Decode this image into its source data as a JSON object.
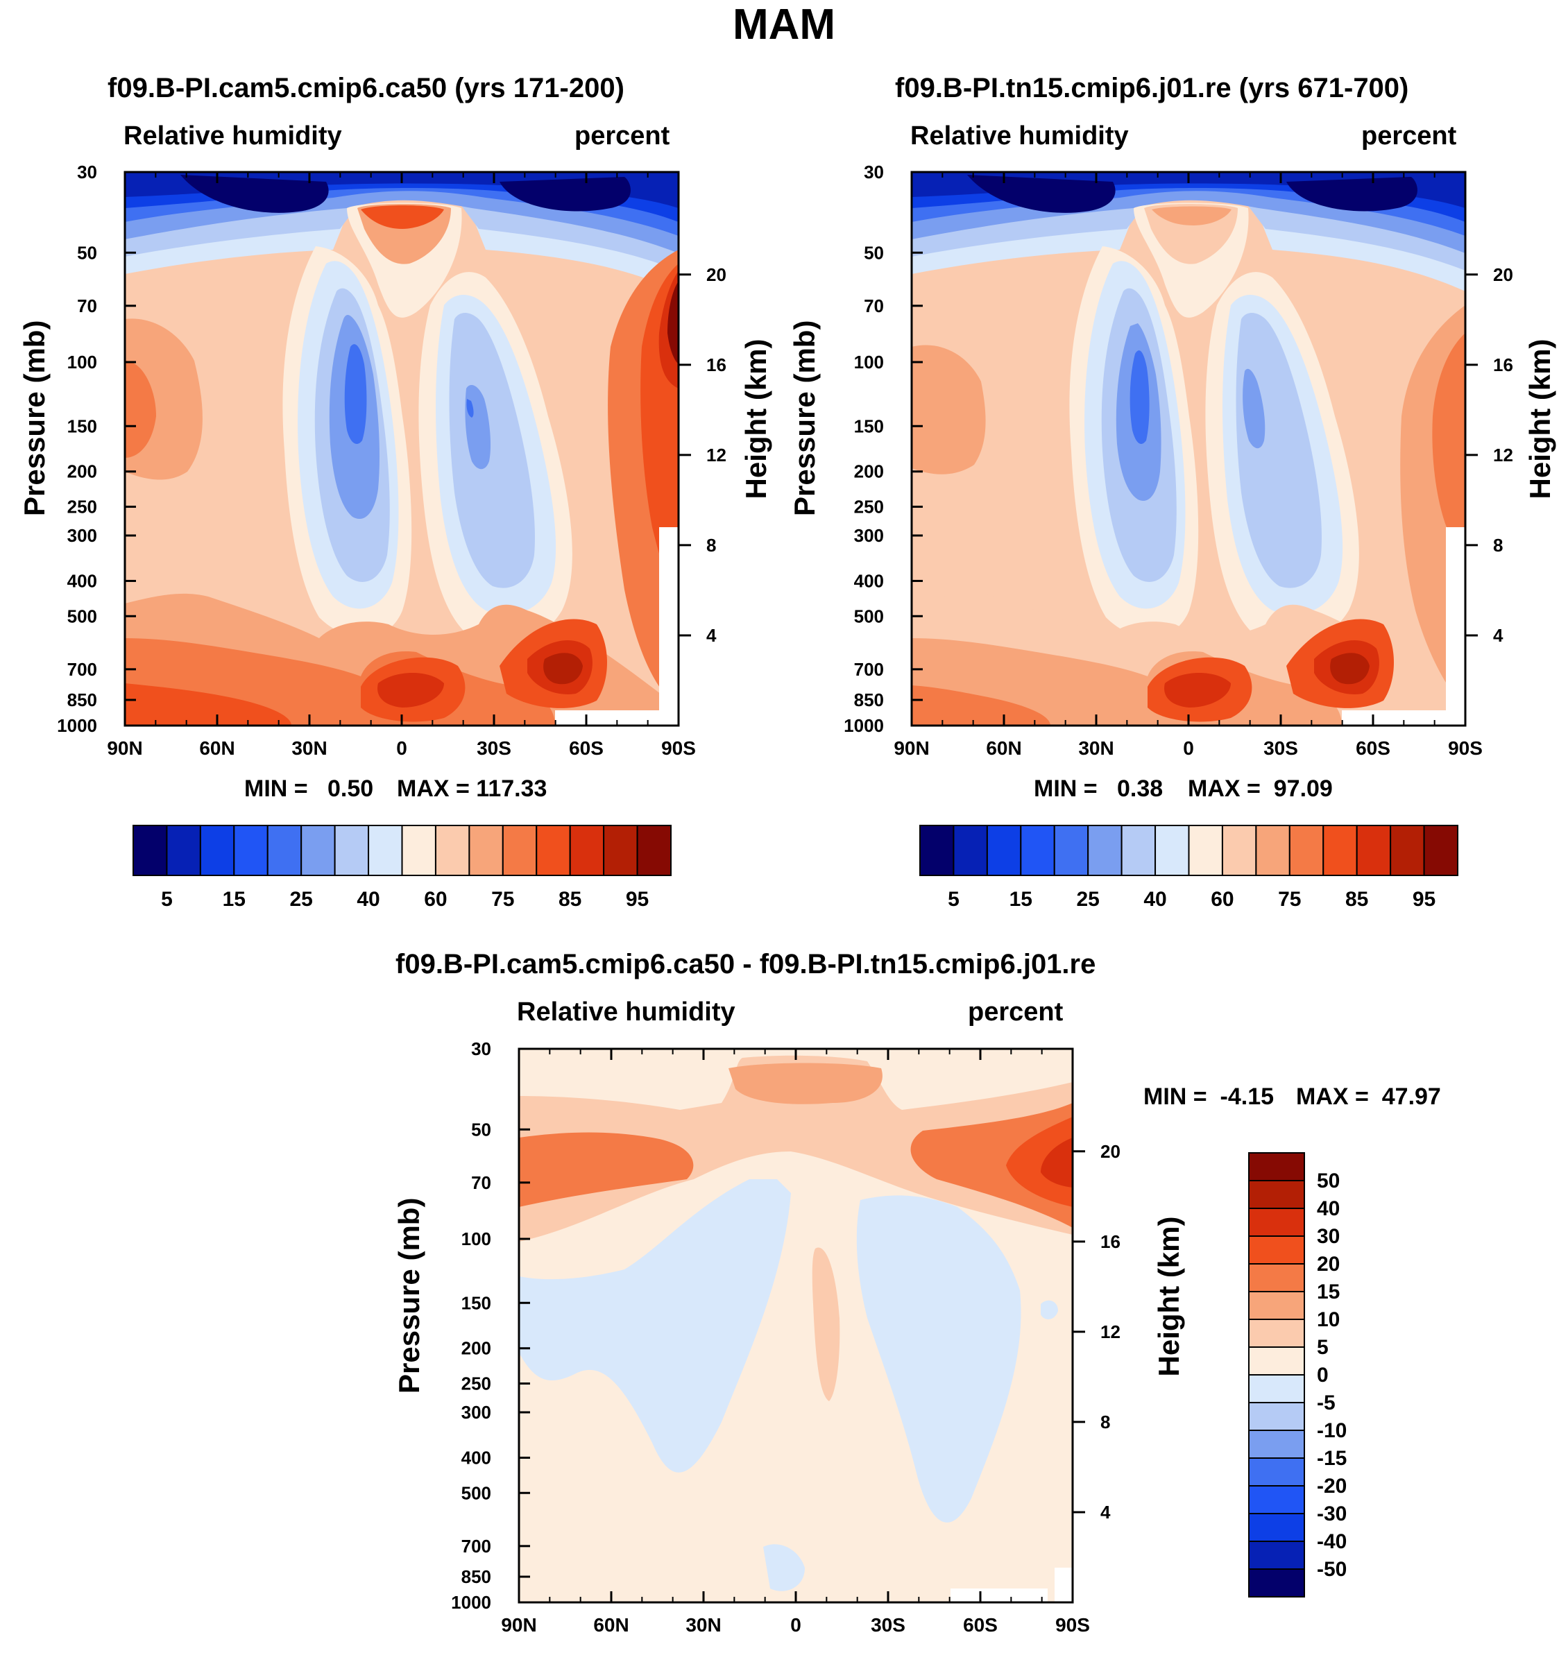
{
  "figure_title": "MAM",
  "chart_data": [
    {
      "type": "heatmap",
      "title": "f09.B-PI.cam5.cmip6.ca50 (yrs 171-200)",
      "left_label": "Relative humidity",
      "right_label": "percent",
      "xlabel": "",
      "ylabel": "Pressure (mb)",
      "ylabel_right": "Height (km)",
      "x_ticks": [
        "90N",
        "60N",
        "30N",
        "0",
        "30S",
        "60S",
        "90S"
      ],
      "y_ticks": [
        30,
        50,
        70,
        100,
        150,
        200,
        250,
        300,
        400,
        500,
        700,
        850,
        1000
      ],
      "y_right_ticks": [
        20,
        16,
        12,
        8,
        4
      ],
      "min_text": "MIN =   0.50",
      "max_text": "MAX = 117.33",
      "levels": [
        5,
        10,
        15,
        20,
        25,
        30,
        40,
        50,
        60,
        70,
        75,
        80,
        85,
        90,
        95
      ],
      "colorbar_labels": [
        "5",
        "15",
        "25",
        "40",
        "60",
        "75",
        "85",
        "95"
      ],
      "colors": [
        "#03006b",
        "#0621b5",
        "#0d3fe6",
        "#2055f5",
        "#3f70f2",
        "#7a9ef0",
        "#b5cbf5",
        "#d8e8fb",
        "#fdeddd",
        "#fbcbae",
        "#f7a57a",
        "#f47a46",
        "#f0501d",
        "#d9300d",
        "#b31f05",
        "#860a03"
      ]
    },
    {
      "type": "heatmap",
      "title": "f09.B-PI.tn15.cmip6.j01.re (yrs 671-700)",
      "left_label": "Relative humidity",
      "right_label": "percent",
      "xlabel": "",
      "ylabel": "Pressure (mb)",
      "ylabel_right": "Height (km)",
      "x_ticks": [
        "90N",
        "60N",
        "30N",
        "0",
        "30S",
        "60S",
        "90S"
      ],
      "y_ticks": [
        30,
        50,
        70,
        100,
        150,
        200,
        250,
        300,
        400,
        500,
        700,
        850,
        1000
      ],
      "y_right_ticks": [
        20,
        16,
        12,
        8,
        4
      ],
      "min_text": "MIN =   0.38",
      "max_text": "MAX =  97.09",
      "levels": [
        5,
        10,
        15,
        20,
        25,
        30,
        40,
        50,
        60,
        70,
        75,
        80,
        85,
        90,
        95
      ],
      "colorbar_labels": [
        "5",
        "15",
        "25",
        "40",
        "60",
        "75",
        "85",
        "95"
      ],
      "colors": [
        "#03006b",
        "#0621b5",
        "#0d3fe6",
        "#2055f5",
        "#3f70f2",
        "#7a9ef0",
        "#b5cbf5",
        "#d8e8fb",
        "#fdeddd",
        "#fbcbae",
        "#f7a57a",
        "#f47a46",
        "#f0501d",
        "#d9300d",
        "#b31f05",
        "#860a03"
      ]
    },
    {
      "type": "heatmap",
      "title": "f09.B-PI.cam5.cmip6.ca50 - f09.B-PI.tn15.cmip6.j01.re",
      "left_label": "Relative humidity",
      "right_label": "percent",
      "xlabel": "",
      "ylabel": "Pressure (mb)",
      "ylabel_right": "Height (km)",
      "x_ticks": [
        "90N",
        "60N",
        "30N",
        "0",
        "30S",
        "60S",
        "90S"
      ],
      "y_ticks": [
        30,
        50,
        70,
        100,
        150,
        200,
        250,
        300,
        400,
        500,
        700,
        850,
        1000
      ],
      "y_right_ticks": [
        20,
        16,
        12,
        8,
        4
      ],
      "min_text": "MIN =  -4.15",
      "max_text": "MAX =  47.97",
      "levels": [
        -50,
        -40,
        -30,
        -20,
        -15,
        -10,
        -5,
        0,
        5,
        10,
        15,
        20,
        30,
        40,
        50
      ],
      "colorbar_labels": [
        "50",
        "40",
        "30",
        "20",
        "15",
        "10",
        "5",
        "0",
        "-5",
        "-10",
        "-15",
        "-20",
        "-30",
        "-40",
        "-50"
      ],
      "colors": [
        "#860a03",
        "#b31f05",
        "#d9300d",
        "#f0501d",
        "#f47a46",
        "#f7a57a",
        "#fbcbae",
        "#fdeddd",
        "#d8e8fb",
        "#b5cbf5",
        "#7a9ef0",
        "#3f70f2",
        "#2055f5",
        "#0d3fe6",
        "#0621b5",
        "#03006b"
      ]
    }
  ]
}
